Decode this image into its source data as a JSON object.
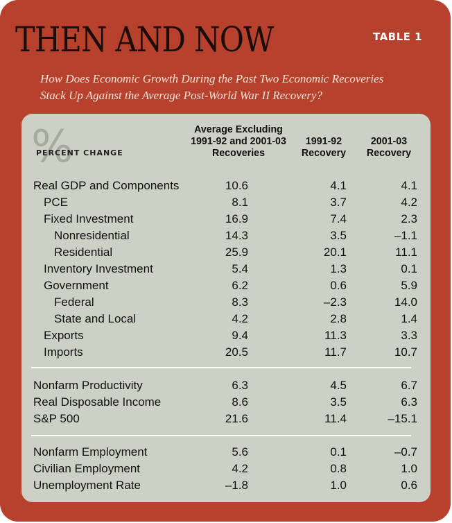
{
  "title": "THEN AND NOW",
  "table_tag": "TABLE 1",
  "subtitle_lines": [
    "How Does Economic Growth During the Past Two Economic Recoveries",
    "Stack Up Against the Average Post-World War II Recovery?"
  ],
  "percent_symbol": "%",
  "percent_change_label": "PERCENT CHANGE",
  "columns": [
    {
      "lines": [
        "Average Excluding",
        "1991-92 and 2001-03",
        "Recoveries"
      ]
    },
    {
      "lines": [
        "1991-92",
        "Recovery"
      ]
    },
    {
      "lines": [
        "2001-03",
        "Recovery"
      ]
    }
  ],
  "groups": [
    {
      "rows": [
        {
          "label": "Real GDP and Components",
          "indent": 0,
          "values": [
            "10.6",
            "4.1",
            "4.1"
          ]
        },
        {
          "label": "PCE",
          "indent": 1,
          "values": [
            "8.1",
            "3.7",
            "4.2"
          ]
        },
        {
          "label": "Fixed Investment",
          "indent": 1,
          "values": [
            "16.9",
            "7.4",
            "2.3"
          ]
        },
        {
          "label": "Nonresidential",
          "indent": 2,
          "values": [
            "14.3",
            "3.5",
            "–1.1"
          ]
        },
        {
          "label": "Residential",
          "indent": 2,
          "values": [
            "25.9",
            "20.1",
            "11.1"
          ]
        },
        {
          "label": "Inventory Investment",
          "indent": 1,
          "values": [
            "5.4",
            "1.3",
            "0.1"
          ]
        },
        {
          "label": "Government",
          "indent": 1,
          "values": [
            "6.2",
            "0.6",
            "5.9"
          ]
        },
        {
          "label": "Federal",
          "indent": 2,
          "values": [
            "8.3",
            "–2.3",
            "14.0"
          ]
        },
        {
          "label": "State and Local",
          "indent": 2,
          "values": [
            "4.2",
            "2.8",
            "1.4"
          ]
        },
        {
          "label": "Exports",
          "indent": 1,
          "values": [
            "9.4",
            "11.3",
            "3.3"
          ]
        },
        {
          "label": "Imports",
          "indent": 1,
          "values": [
            "20.5",
            "11.7",
            "10.7"
          ]
        }
      ]
    },
    {
      "rows": [
        {
          "label": "Nonfarm Productivity",
          "indent": 0,
          "values": [
            "6.3",
            "4.5",
            "6.7"
          ]
        },
        {
          "label": "Real Disposable Income",
          "indent": 0,
          "values": [
            "8.6",
            "3.5",
            "6.3"
          ]
        },
        {
          "label": "S&P 500",
          "indent": 0,
          "values": [
            "21.6",
            "11.4",
            "–15.1"
          ]
        }
      ]
    },
    {
      "rows": [
        {
          "label": "Nonfarm Employment",
          "indent": 0,
          "values": [
            "5.6",
            "0.1",
            "–0.7"
          ]
        },
        {
          "label": "Civilian Employment",
          "indent": 0,
          "values": [
            "4.2",
            "0.8",
            "1.0"
          ]
        },
        {
          "label": "Unemployment Rate",
          "indent": 0,
          "values": [
            "–1.8",
            "1.0",
            "0.6"
          ]
        }
      ]
    }
  ],
  "colors": {
    "frame": "#b8412e",
    "panel": "#cdd1c5",
    "percent_symbol": "#a7ab9f",
    "rule": "#ffffff"
  }
}
